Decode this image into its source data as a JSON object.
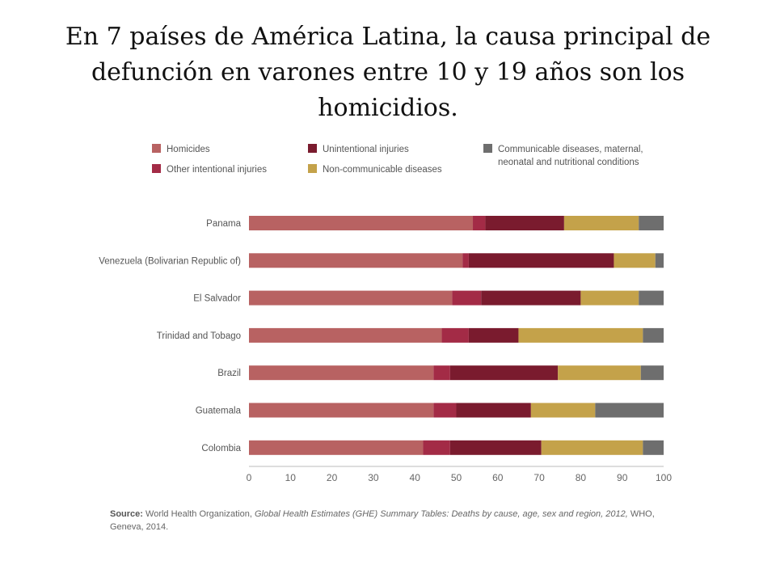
{
  "title": "En 7 países de América Latina, la causa principal de defunción en varones entre 10 y 19 años son los homicidios.",
  "source": {
    "label": "Source:",
    "text_plain": " World Health Organization, ",
    "text_italic": "Global Health Estimates (GHE) Summary Tables: Deaths by cause, age, sex and region, 2012,",
    "text_end": " WHO, Geneva, 2014."
  },
  "colors": {
    "homicides": "#b86262",
    "other_intentional": "#a32b46",
    "unintentional": "#7a1b2e",
    "noncommunicable": "#c4a24a",
    "communicable": "#6e6e6e"
  },
  "chart_data": {
    "type": "bar",
    "orientation": "horizontal",
    "stacked": true,
    "categories": [
      "Panama",
      "Venezuela (Bolivarian Republic of)",
      "El Salvador",
      "Trinidad and Tobago",
      "Brazil",
      "Guatemala",
      "Colombia"
    ],
    "series": [
      {
        "name": "Homicides",
        "color": "#b86262",
        "values": [
          54,
          51.5,
          49,
          46.5,
          44.5,
          44.5,
          42
        ]
      },
      {
        "name": "Other intentional injuries",
        "color": "#a32b46",
        "values": [
          3,
          1.5,
          7,
          6.5,
          4,
          5.5,
          6.5
        ]
      },
      {
        "name": "Unintentional injuries",
        "color": "#7a1b2e",
        "values": [
          19,
          35,
          24,
          12,
          26,
          18,
          22
        ]
      },
      {
        "name": "Non-communicable diseases",
        "color": "#c4a24a",
        "values": [
          18,
          10,
          14,
          30,
          20,
          15.5,
          24.5
        ]
      },
      {
        "name": "Communicable diseases, maternal, neonatal and nutritional conditions",
        "color": "#6e6e6e",
        "values": [
          6,
          2,
          6,
          5,
          5.5,
          16.5,
          5
        ]
      }
    ],
    "xticks": [
      0,
      10,
      20,
      30,
      40,
      50,
      60,
      70,
      80,
      90,
      100
    ],
    "xlim": [
      0,
      100
    ],
    "legend": {
      "position": "top",
      "entries": [
        {
          "text": "Homicides",
          "color": "#b86262"
        },
        {
          "text": "Unintentional injuries",
          "color": "#7a1b2e"
        },
        {
          "text": [
            "Communicable diseases, maternal,",
            "neonatal and nutritional conditions"
          ],
          "color": "#6e6e6e"
        },
        {
          "text": "Other intentional injuries",
          "color": "#a32b46"
        },
        {
          "text": "Non-communicable diseases",
          "color": "#c4a24a"
        }
      ]
    },
    "grid": false
  }
}
